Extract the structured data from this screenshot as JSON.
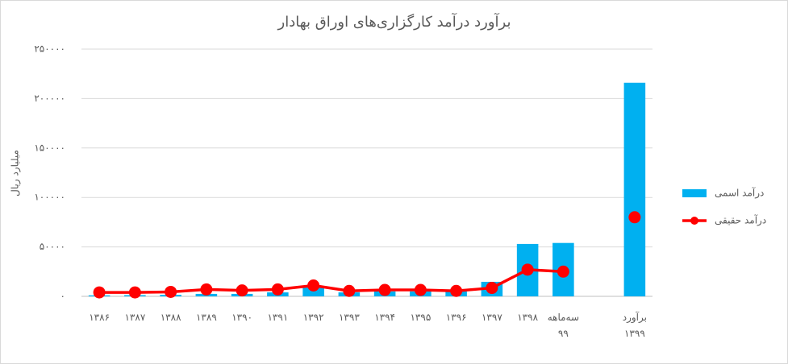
{
  "chart_data": {
    "type": "bar_line",
    "title": "برآورد درآمد کارگزاری‌های اوراق بهادار",
    "y_label": "میلیارد ریال",
    "categories": [
      "۱۳۸۶",
      "۱۳۸۷",
      "۱۳۸۸",
      "۱۳۸۹",
      "۱۳۹۰",
      "۱۳۹۱",
      "۱۳۹۲",
      "۱۳۹۳",
      "۱۳۹۴",
      "۱۳۹۵",
      "۱۳۹۶",
      "۱۳۹۷",
      "۱۳۹۸",
      "سه‌ماهه ۹۹",
      null,
      "برآورد ۱۳۹۹"
    ],
    "series": [
      {
        "name": "درآمد اسمی",
        "type": "bar",
        "color": "#00b0f0",
        "values": [
          1000,
          1200,
          1500,
          2500,
          2500,
          4000,
          9000,
          4000,
          5000,
          5000,
          5000,
          14700,
          53000,
          54000,
          null,
          216000
        ]
      },
      {
        "name": "درآمد حقیقی",
        "type": "line",
        "color": "#ff0000",
        "values": [
          4000,
          4000,
          4500,
          7000,
          6000,
          7000,
          11000,
          5500,
          6500,
          6500,
          5500,
          8500,
          27000,
          25000,
          null,
          80000
        ]
      }
    ],
    "ylim": [
      0,
      250000
    ],
    "yticks": [
      {
        "value": 0,
        "label": "۰"
      },
      {
        "value": 50000,
        "label": "۵۰۰۰۰"
      },
      {
        "value": 100000,
        "label": "۱۰۰۰۰۰"
      },
      {
        "value": 150000,
        "label": "۱۵۰۰۰۰"
      },
      {
        "value": 200000,
        "label": "۲۰۰۰۰۰"
      },
      {
        "value": 250000,
        "label": "۲۵۰۰۰۰"
      }
    ],
    "grid": true,
    "legend": "right"
  }
}
